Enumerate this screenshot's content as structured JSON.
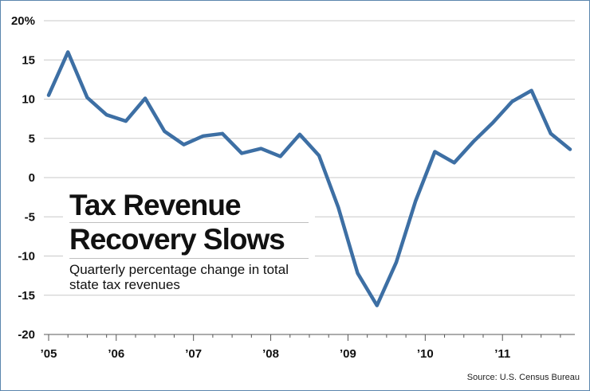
{
  "chart_data": {
    "type": "line",
    "title_lines": [
      "Tax Revenue",
      "Recovery Slows"
    ],
    "subtitle": "Quarterly percentage change in total state tax revenues",
    "source": "Source: U.S. Census Bureau",
    "y_tick_labels": [
      "20%",
      "15",
      "10",
      "5",
      "0",
      "-5",
      "-10",
      "-15",
      "-20"
    ],
    "y_tick_values": [
      20,
      15,
      10,
      5,
      0,
      -5,
      -10,
      -15,
      -20
    ],
    "ylim": [
      -20,
      20
    ],
    "x_tick_labels": [
      "’05",
      "’06",
      "’07",
      "’08",
      "’09",
      "’10",
      "’11"
    ],
    "grid": true,
    "series": [
      {
        "x": [
          "2005 Q1",
          "2005 Q2",
          "2005 Q3",
          "2005 Q4",
          "2006 Q1",
          "2006 Q2",
          "2006 Q3",
          "2006 Q4",
          "2007 Q1",
          "2007 Q2",
          "2007 Q3",
          "2007 Q4",
          "2008 Q1",
          "2008 Q2",
          "2008 Q3",
          "2008 Q4",
          "2009 Q1",
          "2009 Q2",
          "2009 Q3",
          "2009 Q4",
          "2010 Q1",
          "2010 Q2",
          "2010 Q3",
          "2010 Q4",
          "2011 Q1",
          "2011 Q2",
          "2011 Q3",
          "2011 Q4"
        ],
        "values": [
          10.5,
          16.0,
          10.2,
          8.0,
          7.2,
          10.1,
          5.9,
          4.2,
          5.3,
          5.6,
          3.1,
          3.7,
          2.7,
          5.5,
          2.8,
          -3.8,
          -12.2,
          -16.3,
          -10.8,
          -3.0,
          3.3,
          1.9,
          4.6,
          7.0,
          9.7,
          11.1,
          5.6,
          3.6
        ],
        "color": "#3d6fa4"
      }
    ]
  }
}
